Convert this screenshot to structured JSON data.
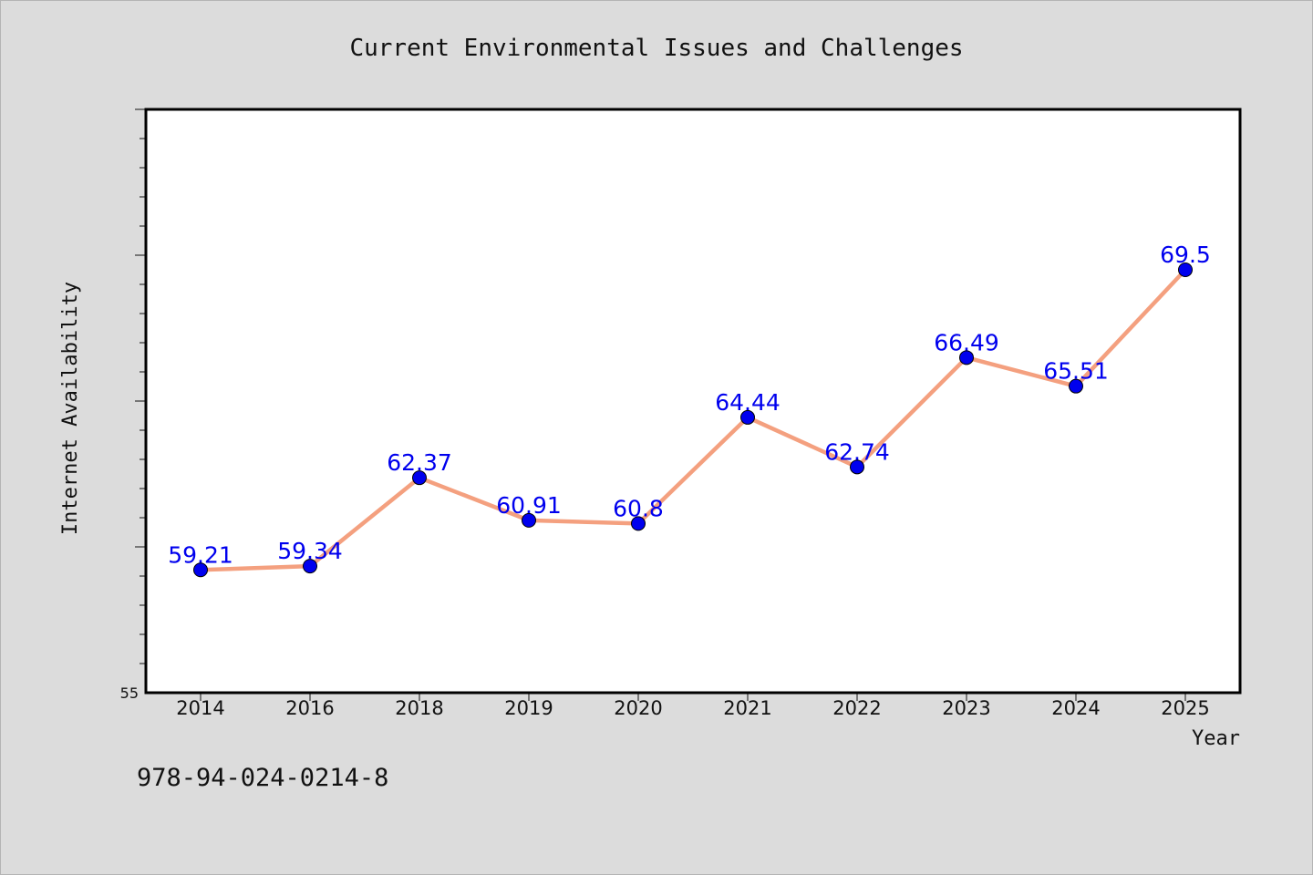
{
  "chart_data": {
    "type": "line",
    "title": "Current Environmental Issues and Challenges",
    "xlabel": "Year",
    "ylabel": "Internet Availability",
    "categories": [
      "2014",
      "2016",
      "2018",
      "2019",
      "2020",
      "2021",
      "2022",
      "2023",
      "2024",
      "2025"
    ],
    "series": [
      {
        "values": [
          59.21,
          59.34,
          62.37,
          60.91,
          60.8,
          64.44,
          62.74,
          66.49,
          65.51,
          69.5
        ],
        "labels": [
          "59.21",
          "59.34",
          "62.37",
          "60.91",
          "60.8",
          "64.44",
          "62.74",
          "66.49",
          "65.51",
          "69.5"
        ]
      }
    ],
    "ylim": [
      55,
      75
    ],
    "y_tick_labels": [
      "55"
    ],
    "grid": false,
    "colors": {
      "line": "#f4a07f",
      "marker": "#0000ee",
      "data_label": "#0000ee",
      "background": "#dcdcdc",
      "plot_background": "#ffffff"
    }
  },
  "footer": {
    "isbn": "978-94-024-0214-8"
  }
}
